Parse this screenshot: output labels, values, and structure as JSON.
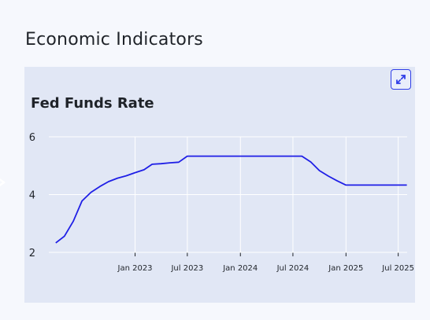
{
  "section": {
    "title": "Economic Indicators"
  },
  "card": {
    "expand_icon": "expand-arrows-icon"
  },
  "chart_data": {
    "type": "line",
    "title": "Fed Funds Rate",
    "xlabel": "",
    "ylabel": "",
    "ylim": [
      2,
      6
    ],
    "yticks": [
      2,
      4,
      6
    ],
    "xlim": [
      "2022-03-08",
      "2025-08-01"
    ],
    "xticks": [
      {
        "date": "2023-01-01",
        "label": "Jan 2023"
      },
      {
        "date": "2023-07-01",
        "label": "Jul 2023"
      },
      {
        "date": "2024-01-01",
        "label": "Jan 2024"
      },
      {
        "date": "2024-07-01",
        "label": "Jul 2024"
      },
      {
        "date": "2025-01-01",
        "label": "Jan 2025"
      },
      {
        "date": "2025-07-01",
        "label": "Jul 2025"
      }
    ],
    "grid": true,
    "color": "#1f1fe6",
    "series": [
      {
        "x": [
          "2022-04-01",
          "2022-05-01",
          "2022-06-01",
          "2022-07-01",
          "2022-08-01",
          "2022-09-01",
          "2022-10-01",
          "2022-11-01",
          "2022-12-01",
          "2023-01-01",
          "2023-02-01",
          "2023-03-01",
          "2023-04-01",
          "2023-05-01",
          "2023-06-01",
          "2023-07-01",
          "2023-08-01",
          "2024-01-01",
          "2024-06-01",
          "2024-08-01",
          "2024-09-01",
          "2024-10-01",
          "2024-11-01",
          "2024-12-01",
          "2025-01-01",
          "2025-07-31"
        ],
        "y": [
          2.33,
          2.56,
          3.08,
          3.78,
          4.08,
          4.28,
          4.45,
          4.57,
          4.65,
          4.76,
          4.86,
          5.05,
          5.07,
          5.1,
          5.12,
          5.33,
          5.33,
          5.33,
          5.33,
          5.33,
          5.13,
          4.83,
          4.64,
          4.48,
          4.33,
          4.33
        ]
      }
    ]
  }
}
